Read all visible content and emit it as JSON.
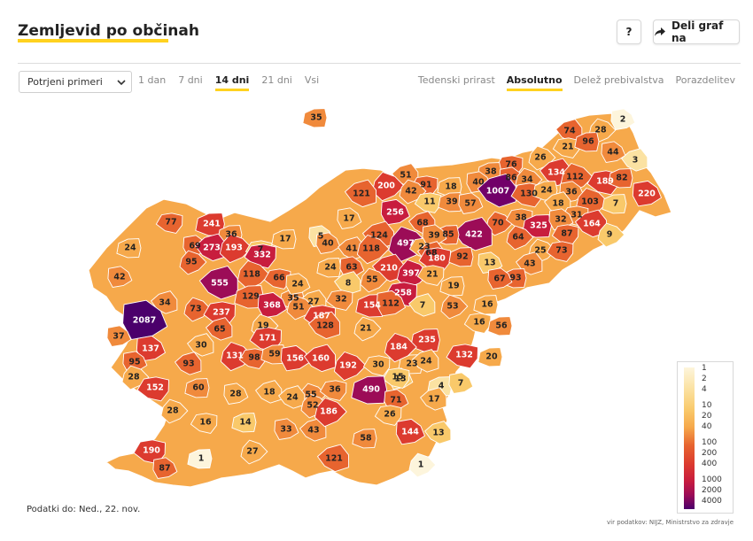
{
  "header": {
    "title": "Zemljevid po občinah",
    "help_label": "?",
    "share_label": "Deli graf na"
  },
  "controls": {
    "select_value": "Potrjeni primeri",
    "time_tabs": [
      {
        "label": "1 dan",
        "active": false
      },
      {
        "label": "7 dni",
        "active": false
      },
      {
        "label": "14 dni",
        "active": true
      },
      {
        "label": "21 dni",
        "active": false
      },
      {
        "label": "Vsi",
        "active": false
      }
    ],
    "mode_tabs": [
      {
        "label": "Tedenski prirast",
        "active": false
      },
      {
        "label": "Absolutno",
        "active": true
      },
      {
        "label": "Delež prebivalstva",
        "active": false
      },
      {
        "label": "Porazdelitev",
        "active": false
      }
    ]
  },
  "map": {
    "municipality_values": [
      "35",
      "2",
      "74",
      "28",
      "21",
      "96",
      "44",
      "3",
      "26",
      "76",
      "38",
      "86",
      "134",
      "112",
      "189",
      "82",
      "220",
      "51",
      "200",
      "91",
      "18",
      "40",
      "1007",
      "34",
      "130",
      "24",
      "36",
      "121",
      "42",
      "11",
      "39",
      "57",
      "18",
      "103",
      "31",
      "7",
      "256",
      "68",
      "70",
      "38",
      "325",
      "32",
      "164",
      "9",
      "77",
      "241",
      "17",
      "422",
      "64",
      "87",
      "36",
      "5",
      "124",
      "497",
      "23",
      "85",
      "39",
      "68",
      "25",
      "73",
      "24",
      "69",
      "273",
      "193",
      "7",
      "17",
      "40",
      "41",
      "118",
      "180",
      "92",
      "13",
      "43",
      "95",
      "332",
      "24",
      "63",
      "210",
      "397",
      "21",
      "93",
      "67",
      "555",
      "118",
      "66",
      "35",
      "24",
      "8",
      "55",
      "258",
      "19",
      "42",
      "34",
      "73",
      "237",
      "129",
      "368",
      "27",
      "51",
      "187",
      "154",
      "112",
      "7",
      "53",
      "32",
      "16",
      "2087",
      "128",
      "21",
      "16",
      "56",
      "37",
      "65",
      "19",
      "171",
      "235",
      "137",
      "30",
      "184",
      "132",
      "20",
      "95",
      "93",
      "131",
      "98",
      "59",
      "156",
      "160",
      "192",
      "30",
      "23",
      "13",
      "24",
      "28",
      "152",
      "60",
      "28",
      "18",
      "55",
      "15",
      "4",
      "7",
      "24",
      "52",
      "36",
      "490",
      "71",
      "17",
      "28",
      "16",
      "14",
      "33",
      "43",
      "186",
      "26",
      "58",
      "144",
      "13",
      "27",
      "190",
      "1",
      "87",
      "121",
      "1"
    ]
  },
  "legend": {
    "labels": [
      "1",
      "2",
      "4",
      "10",
      "20",
      "40",
      "100",
      "200",
      "400",
      "1000",
      "2000",
      "4000"
    ]
  },
  "footer": {
    "date_label": "Podatki do: Ned., 22. nov.",
    "source_label": "vir podatkov: NIJZ, Ministrstvo za zdravje"
  },
  "colors": {
    "accent": "#ffd21f",
    "scale": [
      "#fdf5dc",
      "#fbe2a2",
      "#f9c96a",
      "#f6a94b",
      "#f08a3c",
      "#e7642f",
      "#dc3b2f",
      "#c81d3e",
      "#9c0c57",
      "#720069",
      "#4b006b"
    ]
  }
}
